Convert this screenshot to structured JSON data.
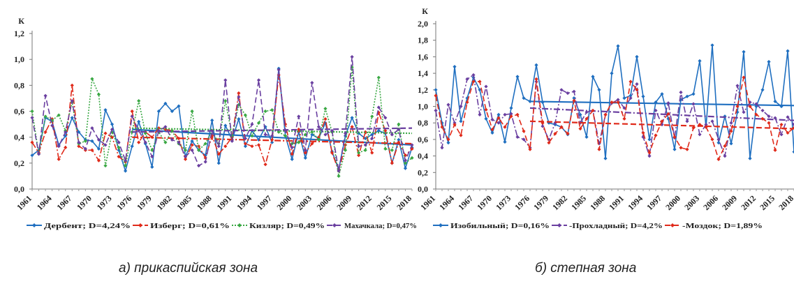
{
  "captions": [
    "а) прикаспийская зона",
    "б) степная зона"
  ],
  "chart_data": [
    {
      "type": "line",
      "ylabel": "К",
      "ylim": [
        0,
        1.2
      ],
      "yticks": [
        "0,0",
        "0,2",
        "0,4",
        "0,6",
        "0,8",
        "1,0",
        "1,2"
      ],
      "xlim": [
        1961,
        2018
      ],
      "xticks": [
        "1961",
        "1964",
        "1967",
        "1970",
        "1973",
        "1976",
        "1979",
        "1982",
        "1985",
        "1988",
        "1991",
        "1994",
        "1997",
        "2000",
        "2003",
        "2006",
        "2009",
        "2012",
        "2015",
        "2018"
      ],
      "legend_position": "bottom",
      "grid": false,
      "series": [
        {
          "name": "Дербент; D=4,24%",
          "color": "#1f6fc0",
          "style": "solid",
          "marker": "diamond",
          "start": 1961,
          "values": [
            0.26,
            0.3,
            0.55,
            0.52,
            0.34,
            0.41,
            0.55,
            0.44,
            0.38,
            0.37,
            0.31,
            0.61,
            0.5,
            0.3,
            0.14,
            0.33,
            0.52,
            0.35,
            0.17,
            0.6,
            0.66,
            0.6,
            0.64,
            0.25,
            0.37,
            0.3,
            0.26,
            0.53,
            0.2,
            0.49,
            0.38,
            0.54,
            0.33,
            0.45,
            0.38,
            0.48,
            0.36,
            0.93,
            0.41,
            0.23,
            0.44,
            0.24,
            0.42,
            0.39,
            0.51,
            0.29,
            0.15,
            0.41,
            0.55,
            0.43,
            0.39,
            0.42,
            0.45,
            0.43,
            0.2,
            0.38,
            0.16,
            0.32
          ],
          "trend": {
            "start": 1976,
            "end": 2018,
            "y_start": 0.46,
            "y_end": 0.34
          }
        },
        {
          "name": "Изберг; D=0,61%",
          "color": "#e02a1a",
          "style": "dash-dot",
          "marker": "diamond",
          "start": 1961,
          "values": [
            0.36,
            0.28,
            0.44,
            0.54,
            0.23,
            0.32,
            0.8,
            0.33,
            0.3,
            0.3,
            0.22,
            0.43,
            0.4,
            0.25,
            0.21,
            0.6,
            0.36,
            0.44,
            0.4,
            0.47,
            0.46,
            0.45,
            0.39,
            0.23,
            0.34,
            0.33,
            0.24,
            0.41,
            0.27,
            0.33,
            0.4,
            0.74,
            0.35,
            0.33,
            0.34,
            0.19,
            0.38,
            0.88,
            0.5,
            0.27,
            0.46,
            0.28,
            0.35,
            0.4,
            0.54,
            0.28,
            0.14,
            0.34,
            0.48,
            0.26,
            0.44,
            0.28,
            0.59,
            0.45,
            0.2,
            0.36,
            0.26,
            0.31
          ],
          "trend": {
            "start": 1976,
            "end": 2018,
            "y_start": 0.4,
            "y_end": 0.35
          }
        },
        {
          "name": "Кизляр;  D=0,49%",
          "color": "#3aa844",
          "style": "dotted",
          "marker": "diamond",
          "start": 1961,
          "values": [
            0.6,
            0.27,
            0.56,
            0.53,
            0.57,
            0.45,
            0.67,
            0.35,
            0.37,
            0.85,
            0.73,
            0.18,
            0.44,
            0.32,
            0.18,
            0.44,
            0.68,
            0.43,
            0.3,
            0.44,
            0.36,
            0.45,
            0.35,
            0.3,
            0.6,
            0.3,
            0.35,
            0.45,
            0.35,
            0.68,
            0.41,
            0.65,
            0.57,
            0.41,
            0.51,
            0.6,
            0.61,
            0.44,
            0.41,
            0.35,
            0.36,
            0.42,
            0.44,
            0.38,
            0.62,
            0.44,
            0.1,
            0.3,
            0.94,
            0.28,
            0.3,
            0.56,
            0.86,
            0.31,
            0.3,
            0.5,
            0.2,
            0.24
          ],
          "trend": {
            "start": 1976,
            "end": 2018,
            "y_start": 0.47,
            "y_end": 0.43
          }
        },
        {
          "name": "Махачкала; D=0,47%",
          "color": "#6a3fa0",
          "style": "dashed",
          "marker": "diamond",
          "start": 1961,
          "values": [
            0.55,
            0.27,
            0.72,
            0.49,
            0.33,
            0.44,
            0.68,
            0.36,
            0.31,
            0.47,
            0.38,
            0.34,
            0.46,
            0.36,
            0.22,
            0.56,
            0.45,
            0.36,
            0.25,
            0.45,
            0.48,
            0.38,
            0.36,
            0.25,
            0.3,
            0.18,
            0.21,
            0.45,
            0.33,
            0.84,
            0.37,
            0.71,
            0.39,
            0.5,
            0.84,
            0.42,
            0.41,
            0.92,
            0.45,
            0.32,
            0.56,
            0.3,
            0.82,
            0.48,
            0.42,
            0.45,
            0.14,
            0.43,
            1.02,
            0.33,
            0.34,
            0.39,
            0.63,
            0.55,
            0.42,
            0.46,
            0.22,
            0.34
          ],
          "trend": {
            "start": 1976,
            "end": 2018,
            "y_start": 0.44,
            "y_end": 0.47
          }
        }
      ]
    },
    {
      "type": "line",
      "ylabel": "К",
      "ylim": [
        0,
        2.0
      ],
      "yticks": [
        "0,0",
        "0,2",
        "0,4",
        "0,6",
        "0,8",
        "1,0",
        "1,2",
        "1,4",
        "1,6",
        "1,8",
        "2,0"
      ],
      "xlim": [
        1961,
        2018
      ],
      "xticks": [
        "1961",
        "1964",
        "1967",
        "1970",
        "1973",
        "1976",
        "1979",
        "1982",
        "1985",
        "1988",
        "1991",
        "1994",
        "1997",
        "2000",
        "2003",
        "2006",
        "2009",
        "2012",
        "2015",
        "2018"
      ],
      "legend_position": "bottom",
      "grid": false,
      "series": [
        {
          "name": "Изобильный; D=0,16%",
          "color": "#1f6fc0",
          "style": "solid",
          "marker": "diamond",
          "start": 1961,
          "values": [
            1.2,
            0.8,
            0.56,
            1.48,
            0.82,
            1.1,
            1.35,
            1.2,
            0.85,
            0.68,
            0.9,
            0.57,
            0.98,
            1.36,
            1.1,
            1.06,
            1.5,
            1.05,
            0.8,
            0.78,
            0.75,
            0.66,
            1.1,
            0.9,
            0.63,
            1.36,
            1.2,
            0.37,
            1.4,
            1.73,
            1.1,
            1.13,
            1.6,
            1.12,
            0.6,
            1.05,
            1.15,
            0.85,
            0.48,
            1.08,
            1.12,
            1.15,
            1.55,
            0.75,
            1.74,
            0.56,
            0.88,
            0.55,
            0.93,
            1.66,
            0.37,
            1.0,
            1.2,
            1.54,
            1.06,
            1.0,
            1.67,
            0.45
          ],
          "trend": {
            "start": 1976,
            "end": 2018,
            "y_start": 1.06,
            "y_end": 1.01
          }
        },
        {
          "name": "-Прохладный; D=4,2%",
          "color": "#6a3fa0",
          "style": "dash-dot",
          "marker": "diamond",
          "start": 1961,
          "values": [
            0.95,
            0.5,
            1.02,
            0.8,
            1.0,
            1.33,
            1.38,
            0.9,
            1.24,
            0.84,
            0.8,
            0.9,
            0.91,
            0.63,
            0.6,
            0.5,
            1.3,
            0.76,
            0.6,
            0.8,
            1.2,
            1.16,
            1.18,
            0.8,
            0.93,
            0.95,
            0.55,
            0.9,
            1.04,
            1.08,
            0.98,
            1.1,
            1.27,
            0.63,
            0.4,
            0.95,
            0.78,
            1.04,
            0.62,
            1.17,
            0.82,
            1.03,
            0.66,
            0.78,
            0.82,
            0.6,
            0.4,
            0.8,
            1.25,
            0.93,
            1.05,
            1.03,
            0.95,
            0.88,
            0.86,
            0.66,
            0.87,
            0.78
          ],
          "trend": {
            "start": 1976,
            "end": 2018,
            "y_start": 0.98,
            "y_end": 0.83
          }
        },
        {
          "name": "-Моздок; D=1,89%",
          "color": "#e02a1a",
          "style": "dashed",
          "marker": "diamond",
          "start": 1961,
          "values": [
            1.13,
            0.75,
            0.6,
            0.78,
            0.65,
            1.05,
            1.3,
            1.3,
            0.96,
            0.72,
            0.86,
            0.75,
            0.88,
            0.9,
            0.7,
            0.48,
            1.33,
            0.8,
            0.56,
            0.67,
            0.75,
            0.67,
            1.07,
            0.73,
            0.85,
            0.95,
            0.48,
            0.9,
            1.05,
            1.05,
            0.85,
            1.3,
            1.2,
            0.68,
            0.44,
            0.65,
            0.82,
            0.91,
            0.63,
            0.5,
            0.48,
            0.74,
            0.78,
            0.75,
            0.6,
            0.36,
            0.52,
            0.7,
            1.0,
            1.35,
            1.0,
            0.9,
            0.85,
            0.8,
            0.47,
            0.78,
            0.68,
            0.74
          ],
          "trend": {
            "start": 1976,
            "end": 2018,
            "y_start": 0.82,
            "y_end": 0.73
          }
        }
      ]
    }
  ]
}
